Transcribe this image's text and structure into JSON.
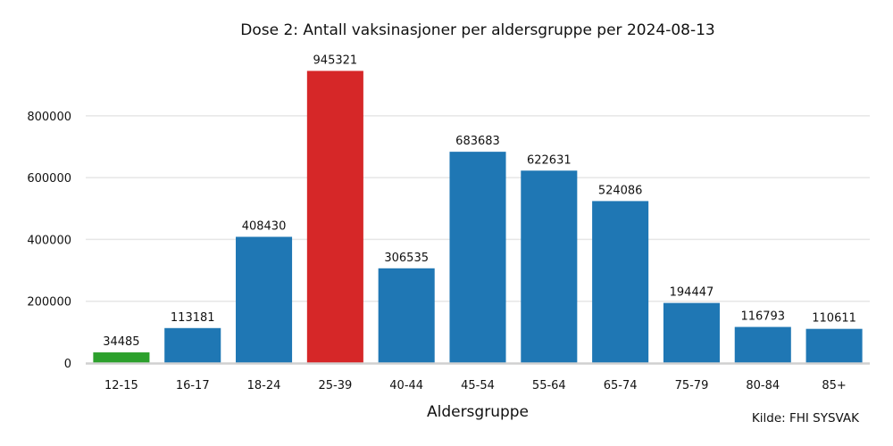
{
  "chart_data": {
    "type": "bar",
    "title": "Dose 2: Antall vaksinasjoner per aldersgruppe per 2024-08-13",
    "xlabel": "Aldersgruppe",
    "ylabel": "",
    "categories": [
      "12-15",
      "16-17",
      "18-24",
      "25-39",
      "40-44",
      "45-54",
      "55-64",
      "65-74",
      "75-79",
      "80-84",
      "85+"
    ],
    "values": [
      34485,
      113181,
      408430,
      945321,
      306535,
      683683,
      622631,
      524086,
      194447,
      116793,
      110611
    ],
    "data_labels": [
      "34485",
      "113181",
      "408430",
      "945321",
      "306535",
      "683683",
      "622631",
      "524086",
      "194447",
      "116793",
      "110611"
    ],
    "bar_colors": [
      "#2ca02c",
      "#1f77b4",
      "#1f77b4",
      "#d62728",
      "#1f77b4",
      "#1f77b4",
      "#1f77b4",
      "#1f77b4",
      "#1f77b4",
      "#1f77b4",
      "#1f77b4"
    ],
    "y_ticks": [
      0,
      200000,
      400000,
      600000,
      800000
    ],
    "y_tick_labels": [
      "0",
      "200000",
      "400000",
      "600000",
      "800000"
    ],
    "ylim": [
      0,
      990000
    ],
    "grid": true,
    "legend": "none",
    "source": "Kilde: FHI SYSVAK"
  }
}
